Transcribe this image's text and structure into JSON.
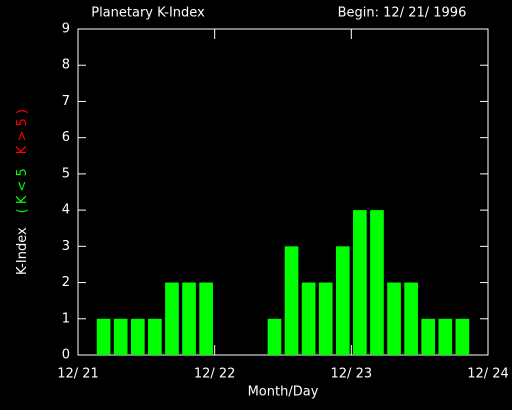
{
  "chart_data": {
    "type": "bar",
    "title": "Planetary K-Index",
    "subtitle": "Begin: 12/ 21/ 1996",
    "x_label": "Month/Day",
    "y_label": [
      "K-Index",
      "( K < 5",
      "K > 5 )"
    ],
    "y_label_colors": [
      "#ffffff",
      "#00ff00",
      "#ff0000"
    ],
    "x": [
      1.5,
      4.5,
      7.5,
      10.5,
      13.5,
      16.5,
      19.5,
      22.5,
      25.5,
      28.5,
      31.5,
      34.5,
      37.5,
      40.5,
      43.5,
      46.5,
      49.5,
      52.5,
      55.5,
      58.5,
      61.5,
      64.5,
      67.5,
      70.5
    ],
    "series": [
      {
        "name": "K-Index",
        "color": "#00ff00",
        "values": [
          null,
          1,
          1,
          1,
          1,
          2,
          2,
          2,
          null,
          null,
          null,
          1,
          3,
          2,
          2,
          3,
          4,
          4,
          2,
          2,
          1,
          1,
          1,
          null
        ]
      }
    ],
    "xlim": [
      0,
      72
    ],
    "xticks": [
      {
        "value": 0,
        "label": "12/ 21"
      },
      {
        "value": 24,
        "label": "12/ 22"
      },
      {
        "value": 48,
        "label": "12/ 23"
      },
      {
        "value": 72,
        "label": "12/ 24"
      }
    ],
    "ylim": [
      0,
      9
    ],
    "yticks": [
      0,
      1,
      2,
      3,
      4,
      5,
      6,
      7,
      8,
      9
    ]
  }
}
